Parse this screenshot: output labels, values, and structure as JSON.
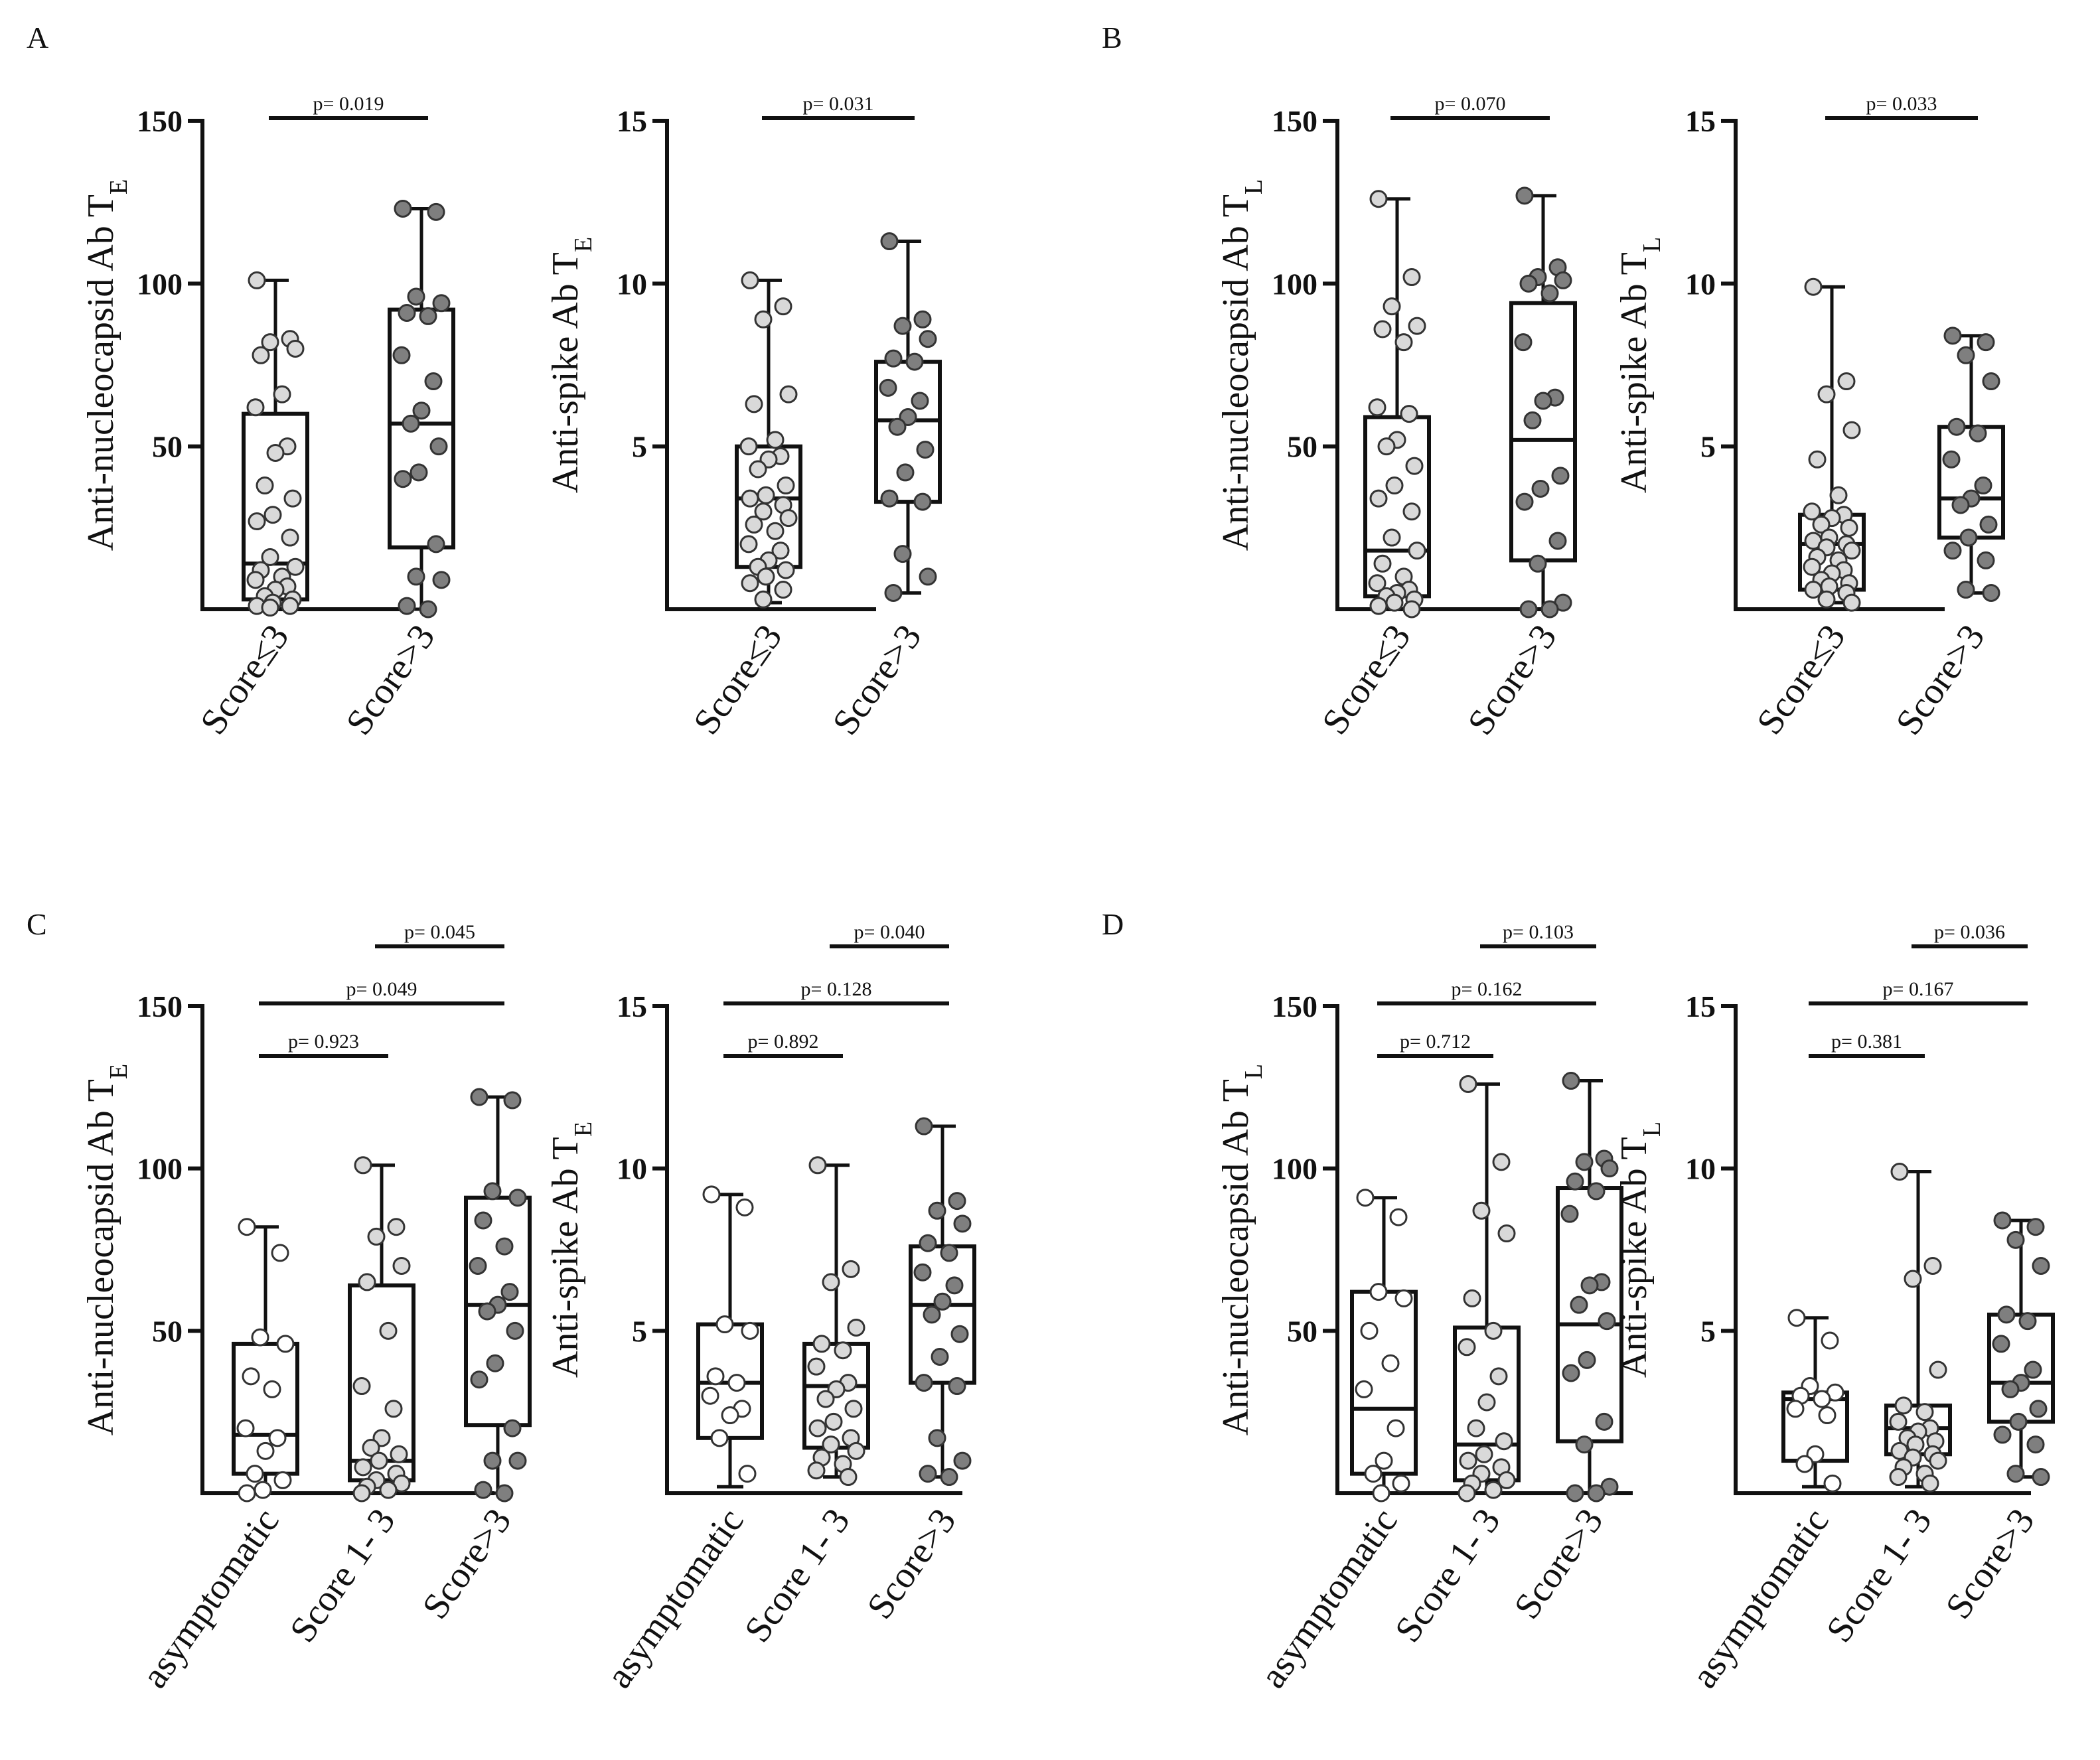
{
  "panel_labels": [
    "A",
    "B",
    "C",
    "D"
  ],
  "colors": {
    "light": "#d9d9d9",
    "white": "#ffffff",
    "dark": "#7f7f7f",
    "axis": "#111111"
  },
  "chart_data": [
    {
      "panel": "A",
      "type": "box",
      "ylabel": "Anti-nucleocapsid Ab T",
      "ylabel_sub": "E",
      "ylim": [
        0,
        150
      ],
      "yticks": [
        50,
        100,
        150
      ],
      "categories": [
        "Score≤3",
        "Score>3"
      ],
      "groups": [
        {
          "color": "light",
          "min": 0,
          "q1": 3,
          "median": 14,
          "q3": 60,
          "max": 101,
          "points": [
            101,
            83,
            82,
            80,
            78,
            66,
            62,
            50,
            48,
            38,
            34,
            29,
            27,
            22,
            16,
            13,
            12,
            10,
            9,
            7,
            6,
            4,
            3,
            2,
            1,
            1,
            0.5
          ]
        },
        {
          "color": "dark",
          "min": 0,
          "q1": 19,
          "median": 57,
          "q3": 92,
          "max": 123,
          "points": [
            123,
            122,
            96,
            94,
            91,
            90,
            78,
            70,
            61,
            57,
            50,
            42,
            40,
            20,
            10,
            9,
            1,
            0
          ]
        }
      ],
      "pvalues": [
        {
          "from": 0,
          "to": 1,
          "label": "p= 0.019"
        }
      ]
    },
    {
      "panel": "A",
      "type": "box",
      "ylabel": "Anti-spike Ab T",
      "ylabel_sub": "E",
      "ylim": [
        0,
        15
      ],
      "yticks": [
        5,
        10,
        15
      ],
      "categories": [
        "Score≤3",
        "Score>3"
      ],
      "groups": [
        {
          "color": "light",
          "min": 0.2,
          "q1": 1.3,
          "median": 3.4,
          "q3": 5.0,
          "max": 10.1,
          "points": [
            10.1,
            9.3,
            8.9,
            6.6,
            6.3,
            5.2,
            5.0,
            4.7,
            4.6,
            4.3,
            3.8,
            3.5,
            3.4,
            3.2,
            3.0,
            2.8,
            2.6,
            2.4,
            2.0,
            1.8,
            1.5,
            1.3,
            1.2,
            1.0,
            0.8,
            0.6,
            0.3
          ]
        },
        {
          "color": "dark",
          "min": 0.5,
          "q1": 3.3,
          "median": 5.8,
          "q3": 7.6,
          "max": 11.3,
          "points": [
            11.3,
            8.9,
            8.7,
            8.3,
            7.7,
            7.6,
            6.8,
            6.4,
            5.9,
            5.6,
            4.9,
            4.2,
            3.4,
            3.3,
            1.7,
            1.0,
            0.5
          ]
        }
      ],
      "pvalues": [
        {
          "from": 0,
          "to": 1,
          "label": "p= 0.031"
        }
      ]
    },
    {
      "panel": "B",
      "type": "box",
      "ylabel": "Anti-nucleocapsid Ab T",
      "ylabel_sub": "L",
      "ylim": [
        0,
        150
      ],
      "yticks": [
        50,
        100,
        150
      ],
      "categories": [
        "Score≤3",
        "Score>3"
      ],
      "groups": [
        {
          "color": "light",
          "min": 0,
          "q1": 4,
          "median": 18,
          "q3": 59,
          "max": 126,
          "points": [
            126,
            102,
            93,
            87,
            86,
            82,
            62,
            60,
            52,
            50,
            44,
            38,
            34,
            30,
            22,
            18,
            14,
            10,
            8,
            6,
            5,
            4,
            3,
            2,
            1,
            0
          ]
        },
        {
          "color": "dark",
          "min": 0,
          "q1": 15,
          "median": 52,
          "q3": 94,
          "max": 127,
          "points": [
            127,
            105,
            102,
            101,
            100,
            97,
            82,
            65,
            64,
            58,
            41,
            37,
            33,
            21,
            14,
            2,
            0,
            0
          ]
        }
      ],
      "pvalues": [
        {
          "from": 0,
          "to": 1,
          "label": "p= 0.070"
        }
      ]
    },
    {
      "panel": "B",
      "type": "box",
      "ylabel": "Anti-spike Ab T",
      "ylabel_sub": "L",
      "ylim": [
        0,
        15
      ],
      "yticks": [
        5,
        10,
        15
      ],
      "categories": [
        "Score≤3",
        "Score>3"
      ],
      "groups": [
        {
          "color": "light",
          "min": 0.2,
          "q1": 0.6,
          "median": 2.0,
          "q3": 2.9,
          "max": 9.9,
          "points": [
            9.9,
            7.0,
            6.6,
            5.5,
            4.6,
            3.5,
            3.0,
            2.9,
            2.8,
            2.6,
            2.5,
            2.2,
            2.1,
            2.0,
            1.9,
            1.8,
            1.6,
            1.5,
            1.3,
            1.2,
            1.1,
            0.9,
            0.8,
            0.7,
            0.6,
            0.5,
            0.3,
            0.2
          ]
        },
        {
          "color": "dark",
          "min": 0.5,
          "q1": 2.2,
          "median": 3.4,
          "q3": 5.6,
          "max": 8.4,
          "points": [
            8.4,
            8.2,
            7.8,
            7.0,
            5.6,
            5.4,
            4.6,
            3.8,
            3.4,
            3.2,
            2.6,
            2.2,
            1.8,
            1.5,
            0.6,
            0.5
          ]
        }
      ],
      "pvalues": [
        {
          "from": 0,
          "to": 1,
          "label": "p= 0.033"
        }
      ]
    },
    {
      "panel": "C",
      "type": "box",
      "ylabel": "Anti-nucleocapsid Ab T",
      "ylabel_sub": "E",
      "ylim": [
        0,
        150
      ],
      "yticks": [
        50,
        100,
        150
      ],
      "categories": [
        "asymptomatic",
        "Score 1- 3",
        "Score>3"
      ],
      "groups": [
        {
          "color": "white",
          "min": 0,
          "q1": 6,
          "median": 18,
          "q3": 46,
          "max": 82,
          "points": [
            82,
            74,
            48,
            46,
            36,
            32,
            20,
            17,
            13,
            6,
            4,
            1,
            0
          ]
        },
        {
          "color": "light",
          "min": 0,
          "q1": 4,
          "median": 10,
          "q3": 64,
          "max": 101,
          "points": [
            101,
            82,
            79,
            70,
            65,
            50,
            33,
            26,
            17,
            14,
            12,
            10,
            8,
            6,
            4,
            3,
            2,
            1,
            0
          ]
        },
        {
          "color": "dark",
          "min": 0,
          "q1": 21,
          "median": 58,
          "q3": 91,
          "max": 122,
          "points": [
            122,
            121,
            93,
            91,
            84,
            76,
            70,
            62,
            58,
            56,
            50,
            40,
            35,
            20,
            10,
            10,
            1,
            0
          ]
        }
      ],
      "pvalues": [
        {
          "from": 1,
          "to": 2,
          "label": "p= 0.045"
        },
        {
          "from": 0,
          "to": 2,
          "label": "p= 0.049"
        },
        {
          "from": 0,
          "to": 1,
          "label": "p= 0.923"
        }
      ]
    },
    {
      "panel": "C",
      "type": "box",
      "ylabel": "Anti-spike Ab T",
      "ylabel_sub": "E",
      "ylim": [
        0,
        15
      ],
      "yticks": [
        5,
        10,
        15
      ],
      "categories": [
        "asymptomatic",
        "Score 1- 3",
        "Score>3"
      ],
      "groups": [
        {
          "color": "white",
          "min": 0.2,
          "q1": 1.7,
          "median": 3.4,
          "q3": 5.2,
          "max": 9.2,
          "points": [
            9.2,
            8.8,
            5.2,
            5.0,
            3.6,
            3.4,
            3.0,
            2.6,
            2.4,
            1.7,
            0.6
          ]
        },
        {
          "color": "light",
          "min": 0.5,
          "q1": 1.4,
          "median": 3.3,
          "q3": 4.6,
          "max": 10.1,
          "points": [
            10.1,
            6.9,
            6.5,
            5.1,
            4.6,
            4.4,
            3.9,
            3.4,
            3.2,
            2.9,
            2.6,
            2.2,
            2.0,
            1.7,
            1.5,
            1.3,
            1.1,
            0.9,
            0.7,
            0.5
          ]
        },
        {
          "color": "dark",
          "min": 0.5,
          "q1": 3.4,
          "median": 5.8,
          "q3": 7.6,
          "max": 11.3,
          "points": [
            11.3,
            9.0,
            8.7,
            8.3,
            7.7,
            7.4,
            6.8,
            6.4,
            5.9,
            5.5,
            4.9,
            4.2,
            3.4,
            3.3,
            1.7,
            1.0,
            0.6,
            0.5
          ]
        }
      ],
      "pvalues": [
        {
          "from": 1,
          "to": 2,
          "label": "p= 0.040"
        },
        {
          "from": 0,
          "to": 2,
          "label": "p= 0.128"
        },
        {
          "from": 0,
          "to": 1,
          "label": "p= 0.892"
        }
      ]
    },
    {
      "panel": "D",
      "type": "box",
      "ylabel": "Anti-nucleocapsid Ab T",
      "ylabel_sub": "L",
      "ylim": [
        0,
        150
      ],
      "yticks": [
        50,
        100,
        150
      ],
      "categories": [
        "asymptomatic",
        "Score 1- 3",
        "Score>3"
      ],
      "groups": [
        {
          "color": "white",
          "min": 0,
          "q1": 6,
          "median": 26,
          "q3": 62,
          "max": 91,
          "points": [
            91,
            85,
            62,
            60,
            50,
            40,
            32,
            20,
            10,
            6,
            3,
            0
          ]
        },
        {
          "color": "light",
          "min": 0,
          "q1": 4,
          "median": 15,
          "q3": 51,
          "max": 126,
          "points": [
            126,
            102,
            87,
            80,
            60,
            50,
            45,
            36,
            28,
            20,
            16,
            12,
            10,
            8,
            6,
            4,
            3,
            1,
            0
          ]
        },
        {
          "color": "dark",
          "min": 0,
          "q1": 16,
          "median": 52,
          "q3": 94,
          "max": 127,
          "points": [
            127,
            103,
            102,
            100,
            96,
            93,
            86,
            65,
            64,
            58,
            53,
            41,
            37,
            22,
            15,
            2,
            0,
            0
          ]
        }
      ],
      "pvalues": [
        {
          "from": 1,
          "to": 2,
          "label": "p= 0.103"
        },
        {
          "from": 0,
          "to": 2,
          "label": "p= 0.162"
        },
        {
          "from": 0,
          "to": 1,
          "label": "p= 0.712"
        }
      ]
    },
    {
      "panel": "D",
      "type": "box",
      "ylabel": "Anti-spike Ab T",
      "ylabel_sub": "L",
      "ylim": [
        0,
        15
      ],
      "yticks": [
        5,
        10,
        15
      ],
      "categories": [
        "asymptomatic",
        "Score 1- 3",
        "Score>3"
      ],
      "groups": [
        {
          "color": "white",
          "min": 0.2,
          "q1": 1.0,
          "median": 2.9,
          "q3": 3.1,
          "max": 5.4,
          "points": [
            5.4,
            4.7,
            3.3,
            3.1,
            3.0,
            2.9,
            2.6,
            2.4,
            1.2,
            0.9,
            0.3
          ]
        },
        {
          "color": "light",
          "min": 0.2,
          "q1": 1.2,
          "median": 2.0,
          "q3": 2.7,
          "max": 9.9,
          "points": [
            9.9,
            7.0,
            6.6,
            3.8,
            2.7,
            2.5,
            2.2,
            2.0,
            1.9,
            1.7,
            1.6,
            1.5,
            1.3,
            1.2,
            1.1,
            1.0,
            0.8,
            0.6,
            0.5,
            0.3
          ]
        },
        {
          "color": "dark",
          "min": 0.5,
          "q1": 2.2,
          "median": 3.4,
          "q3": 5.5,
          "max": 8.4,
          "points": [
            8.4,
            8.2,
            7.8,
            7.0,
            5.5,
            5.3,
            4.6,
            3.8,
            3.4,
            3.2,
            2.6,
            2.2,
            1.8,
            1.5,
            0.6,
            0.5
          ]
        }
      ],
      "pvalues": [
        {
          "from": 1,
          "to": 2,
          "label": "p= 0.036"
        },
        {
          "from": 0,
          "to": 2,
          "label": "p= 0.167"
        },
        {
          "from": 0,
          "to": 1,
          "label": "p= 0.381"
        }
      ]
    }
  ]
}
